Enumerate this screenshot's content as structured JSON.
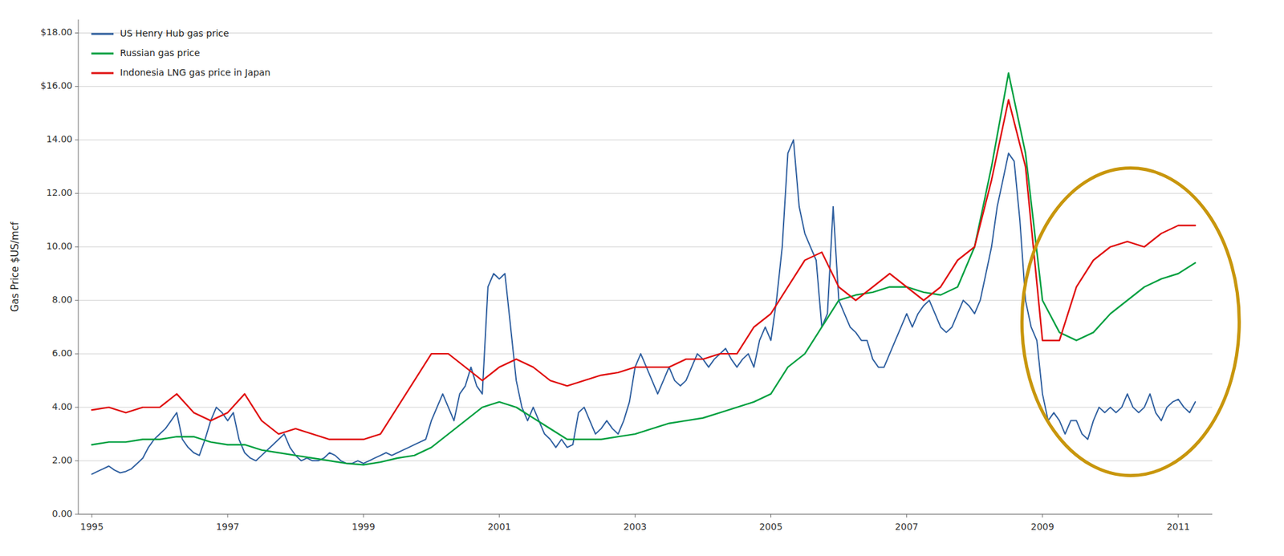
{
  "chart_data": {
    "type": "line",
    "y_label": "Gas Price $US/mcf",
    "xlim": [
      1994.8,
      2011.5
    ],
    "xticks": [
      1995,
      1997,
      1999,
      2001,
      2003,
      2005,
      2007,
      2009,
      2011
    ],
    "ylim": [
      0,
      18.5
    ],
    "yticks": [
      {
        "value": 0,
        "label": "0.00"
      },
      {
        "value": 2,
        "label": "2.00"
      },
      {
        "value": 4,
        "label": "4.00"
      },
      {
        "value": 6,
        "label": "6.00"
      },
      {
        "value": 8,
        "label": "8.00"
      },
      {
        "value": 10,
        "label": "10.00"
      },
      {
        "value": 12,
        "label": "12.00"
      },
      {
        "value": 14,
        "label": "14.00"
      },
      {
        "value": 16,
        "label": "$16.00"
      },
      {
        "value": 18,
        "label": "$18.00"
      }
    ],
    "grid": "y",
    "legend": "upper left",
    "series": [
      {
        "name": "US Henry Hub gas price",
        "color": "#3060a0",
        "x": [
          1995.0,
          1995.083,
          1995.167,
          1995.25,
          1995.333,
          1995.417,
          1995.5,
          1995.583,
          1995.667,
          1995.75,
          1995.833,
          1995.917,
          1996.0,
          1996.083,
          1996.167,
          1996.25,
          1996.333,
          1996.417,
          1996.5,
          1996.583,
          1996.667,
          1996.75,
          1996.833,
          1996.917,
          1997.0,
          1997.083,
          1997.167,
          1997.25,
          1997.333,
          1997.417,
          1997.5,
          1997.583,
          1997.667,
          1997.75,
          1997.833,
          1997.917,
          1998.0,
          1998.083,
          1998.167,
          1998.25,
          1998.333,
          1998.417,
          1998.5,
          1998.583,
          1998.667,
          1998.75,
          1998.833,
          1998.917,
          1999.0,
          1999.083,
          1999.167,
          1999.25,
          1999.333,
          1999.417,
          1999.5,
          1999.583,
          1999.667,
          1999.75,
          1999.833,
          1999.917,
          2000.0,
          2000.083,
          2000.167,
          2000.25,
          2000.333,
          2000.417,
          2000.5,
          2000.583,
          2000.667,
          2000.75,
          2000.833,
          2000.917,
          2001.0,
          2001.083,
          2001.167,
          2001.25,
          2001.333,
          2001.417,
          2001.5,
          2001.583,
          2001.667,
          2001.75,
          2001.833,
          2001.917,
          2002.0,
          2002.083,
          2002.167,
          2002.25,
          2002.333,
          2002.417,
          2002.5,
          2002.583,
          2002.667,
          2002.75,
          2002.833,
          2002.917,
          2003.0,
          2003.083,
          2003.167,
          2003.25,
          2003.333,
          2003.417,
          2003.5,
          2003.583,
          2003.667,
          2003.75,
          2003.833,
          2003.917,
          2004.0,
          2004.083,
          2004.167,
          2004.25,
          2004.333,
          2004.417,
          2004.5,
          2004.583,
          2004.667,
          2004.75,
          2004.833,
          2004.917,
          2005.0,
          2005.083,
          2005.167,
          2005.25,
          2005.333,
          2005.417,
          2005.5,
          2005.583,
          2005.667,
          2005.75,
          2005.833,
          2005.917,
          2006.0,
          2006.083,
          2006.167,
          2006.25,
          2006.333,
          2006.417,
          2006.5,
          2006.583,
          2006.667,
          2006.75,
          2006.833,
          2006.917,
          2007.0,
          2007.083,
          2007.167,
          2007.25,
          2007.333,
          2007.417,
          2007.5,
          2007.583,
          2007.667,
          2007.75,
          2007.833,
          2007.917,
          2008.0,
          2008.083,
          2008.167,
          2008.25,
          2008.333,
          2008.417,
          2008.5,
          2008.583,
          2008.667,
          2008.75,
          2008.833,
          2008.917,
          2009.0,
          2009.083,
          2009.167,
          2009.25,
          2009.333,
          2009.417,
          2009.5,
          2009.583,
          2009.667,
          2009.75,
          2009.833,
          2009.917,
          2010.0,
          2010.083,
          2010.167,
          2010.25,
          2010.333,
          2010.417,
          2010.5,
          2010.583,
          2010.667,
          2010.75,
          2010.833,
          2010.917,
          2011.0,
          2011.083,
          2011.167,
          2011.25
        ],
        "values": [
          1.5,
          1.6,
          1.7,
          1.8,
          1.65,
          1.55,
          1.6,
          1.7,
          1.9,
          2.1,
          2.5,
          2.8,
          3.0,
          3.2,
          3.5,
          3.8,
          2.8,
          2.5,
          2.3,
          2.2,
          2.8,
          3.5,
          4.0,
          3.8,
          3.5,
          3.8,
          2.8,
          2.3,
          2.1,
          2.0,
          2.2,
          2.4,
          2.6,
          2.8,
          3.0,
          2.5,
          2.2,
          2.0,
          2.1,
          2.0,
          2.0,
          2.1,
          2.3,
          2.2,
          2.0,
          1.9,
          1.9,
          2.0,
          1.9,
          2.0,
          2.1,
          2.2,
          2.3,
          2.2,
          2.3,
          2.4,
          2.5,
          2.6,
          2.7,
          2.8,
          3.5,
          4.0,
          4.5,
          4.0,
          3.5,
          4.5,
          4.8,
          5.5,
          4.8,
          4.5,
          8.5,
          9.0,
          8.8,
          9.0,
          7.0,
          5.0,
          4.0,
          3.5,
          4.0,
          3.5,
          3.0,
          2.8,
          2.5,
          2.8,
          2.5,
          2.6,
          3.8,
          4.0,
          3.5,
          3.0,
          3.2,
          3.5,
          3.2,
          3.0,
          3.5,
          4.2,
          5.5,
          6.0,
          5.5,
          5.0,
          4.5,
          5.0,
          5.5,
          5.0,
          4.8,
          5.0,
          5.5,
          6.0,
          5.8,
          5.5,
          5.8,
          6.0,
          6.2,
          5.8,
          5.5,
          5.8,
          6.0,
          5.5,
          6.5,
          7.0,
          6.5,
          8.0,
          10.0,
          13.5,
          14.0,
          11.5,
          10.5,
          10.0,
          9.5,
          7.0,
          7.5,
          11.5,
          8.0,
          7.5,
          7.0,
          6.8,
          6.5,
          6.5,
          5.8,
          5.5,
          5.5,
          6.0,
          6.5,
          7.0,
          7.5,
          7.0,
          7.5,
          7.8,
          8.0,
          7.5,
          7.0,
          6.8,
          7.0,
          7.5,
          8.0,
          7.8,
          7.5,
          8.0,
          9.0,
          10.0,
          11.5,
          12.5,
          13.5,
          13.2,
          11.0,
          8.0,
          7.0,
          6.5,
          4.5,
          3.5,
          3.8,
          3.5,
          3.0,
          3.5,
          3.5,
          3.0,
          2.8,
          3.5,
          4.0,
          3.8,
          4.0,
          3.8,
          4.0,
          4.5,
          4.0,
          3.8,
          4.0,
          4.5,
          3.8,
          3.5,
          4.0,
          4.2,
          4.3,
          4.0,
          3.8,
          4.2
        ]
      },
      {
        "name": "Russian gas price",
        "color": "#00a040",
        "x": [
          1995.0,
          1995.25,
          1995.5,
          1995.75,
          1996.0,
          1996.25,
          1996.5,
          1996.75,
          1997.0,
          1997.25,
          1997.5,
          1997.75,
          1998.0,
          1998.25,
          1998.5,
          1998.75,
          1999.0,
          1999.25,
          1999.5,
          1999.75,
          2000.0,
          2000.25,
          2000.5,
          2000.75,
          2001.0,
          2001.25,
          2001.5,
          2001.75,
          2002.0,
          2002.25,
          2002.5,
          2002.75,
          2003.0,
          2003.25,
          2003.5,
          2003.75,
          2004.0,
          2004.25,
          2004.5,
          2004.75,
          2005.0,
          2005.25,
          2005.5,
          2005.75,
          2006.0,
          2006.25,
          2006.5,
          2006.75,
          2007.0,
          2007.25,
          2007.5,
          2007.75,
          2008.0,
          2008.25,
          2008.5,
          2008.75,
          2009.0,
          2009.25,
          2009.5,
          2009.75,
          2010.0,
          2010.25,
          2010.5,
          2010.75,
          2011.0,
          2011.25
        ],
        "values": [
          2.6,
          2.7,
          2.7,
          2.8,
          2.8,
          2.9,
          2.9,
          2.7,
          2.6,
          2.6,
          2.4,
          2.3,
          2.2,
          2.1,
          2.0,
          1.9,
          1.85,
          1.95,
          2.1,
          2.2,
          2.5,
          3.0,
          3.5,
          4.0,
          4.2,
          4.0,
          3.6,
          3.2,
          2.8,
          2.8,
          2.8,
          2.9,
          3.0,
          3.2,
          3.4,
          3.5,
          3.6,
          3.8,
          4.0,
          4.2,
          4.5,
          5.5,
          6.0,
          7.0,
          8.0,
          8.2,
          8.3,
          8.5,
          8.5,
          8.3,
          8.2,
          8.5,
          10.0,
          13.0,
          16.5,
          13.5,
          8.0,
          6.8,
          6.5,
          6.8,
          7.5,
          8.0,
          8.5,
          8.8,
          9.0,
          9.4
        ]
      },
      {
        "name": "Indonesia LNG gas price in Japan",
        "color": "#e01010",
        "x": [
          1995.0,
          1995.25,
          1995.5,
          1995.75,
          1996.0,
          1996.25,
          1996.5,
          1996.75,
          1997.0,
          1997.25,
          1997.5,
          1997.75,
          1998.0,
          1998.25,
          1998.5,
          1998.75,
          1999.0,
          1999.25,
          1999.5,
          1999.75,
          2000.0,
          2000.25,
          2000.5,
          2000.75,
          2001.0,
          2001.25,
          2001.5,
          2001.75,
          2002.0,
          2002.25,
          2002.5,
          2002.75,
          2003.0,
          2003.25,
          2003.5,
          2003.75,
          2004.0,
          2004.25,
          2004.5,
          2004.75,
          2005.0,
          2005.25,
          2005.5,
          2005.75,
          2006.0,
          2006.25,
          2006.5,
          2006.75,
          2007.0,
          2007.25,
          2007.5,
          2007.75,
          2008.0,
          2008.25,
          2008.5,
          2008.75,
          2009.0,
          2009.25,
          2009.5,
          2009.75,
          2010.0,
          2010.25,
          2010.5,
          2010.75,
          2011.0,
          2011.25
        ],
        "values": [
          3.9,
          4.0,
          3.8,
          4.0,
          4.0,
          4.5,
          3.8,
          3.5,
          3.8,
          4.5,
          3.5,
          3.0,
          3.2,
          3.0,
          2.8,
          2.8,
          2.8,
          3.0,
          4.0,
          5.0,
          6.0,
          6.0,
          5.5,
          5.0,
          5.5,
          5.8,
          5.5,
          5.0,
          4.8,
          5.0,
          5.2,
          5.3,
          5.5,
          5.5,
          5.5,
          5.8,
          5.8,
          6.0,
          6.0,
          7.0,
          7.5,
          8.5,
          9.5,
          9.8,
          8.5,
          8.0,
          8.5,
          9.0,
          8.5,
          8.0,
          8.5,
          9.5,
          10.0,
          12.5,
          15.5,
          13.0,
          6.5,
          6.5,
          8.5,
          9.5,
          10.0,
          10.2,
          10.0,
          10.5,
          10.8,
          10.8
        ]
      }
    ]
  }
}
